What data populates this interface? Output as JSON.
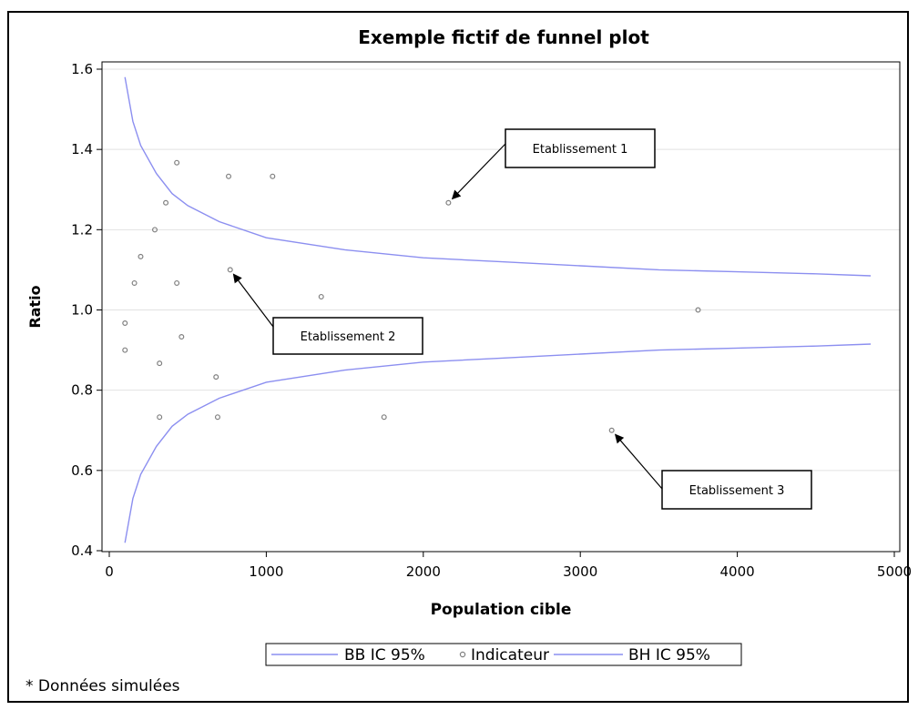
{
  "chart_data": {
    "type": "scatter",
    "title": "Exemple fictif de funnel plot",
    "xlabel": "Population cible",
    "ylabel": "Ratio",
    "xlim": [
      0,
      5000
    ],
    "ylim": [
      0.4,
      1.6
    ],
    "xticks": [
      "0",
      "1000",
      "2000",
      "3000",
      "4000",
      "5000"
    ],
    "yticks": [
      "0.4",
      "0.6",
      "0.8",
      "1.0",
      "1.2",
      "1.4",
      "1.6"
    ],
    "grid": "horizontal",
    "colors": {
      "bounds": "#8c8ff0",
      "points": "#808080"
    },
    "series": [
      {
        "name": "BB IC 95%",
        "kind": "line",
        "x": [
          100,
          150,
          200,
          300,
          400,
          500,
          700,
          1000,
          1500,
          2000,
          2500,
          3000,
          3500,
          4000,
          4500,
          4850
        ],
        "y": [
          0.42,
          0.53,
          0.59,
          0.66,
          0.71,
          0.74,
          0.78,
          0.82,
          0.85,
          0.87,
          0.88,
          0.89,
          0.9,
          0.905,
          0.91,
          0.915
        ]
      },
      {
        "name": "Indicateur",
        "kind": "scatter",
        "x": [
          100,
          100,
          160,
          200,
          290,
          320,
          320,
          360,
          430,
          430,
          460,
          680,
          690,
          760,
          770,
          1040,
          1350,
          1750,
          2160,
          3200,
          3750
        ],
        "y": [
          0.967,
          0.9,
          1.067,
          1.133,
          1.2,
          0.867,
          0.733,
          1.267,
          1.367,
          1.067,
          0.933,
          0.833,
          0.733,
          1.333,
          1.1,
          1.333,
          1.033,
          0.733,
          1.267,
          0.7,
          1.0
        ]
      },
      {
        "name": "BH IC 95%",
        "kind": "line",
        "x": [
          100,
          150,
          200,
          300,
          400,
          500,
          700,
          1000,
          1500,
          2000,
          2500,
          3000,
          3500,
          4000,
          4500,
          4850
        ],
        "y": [
          1.58,
          1.47,
          1.41,
          1.34,
          1.29,
          1.26,
          1.22,
          1.18,
          1.15,
          1.13,
          1.12,
          1.11,
          1.1,
          1.095,
          1.09,
          1.085
        ]
      }
    ],
    "annotations": [
      {
        "label": "Etablissement 1",
        "x": 2160,
        "y": 1.267
      },
      {
        "label": "Etablissement 2",
        "x": 770,
        "y": 1.1
      },
      {
        "label": "Etablissement 3",
        "x": 3200,
        "y": 0.7
      }
    ],
    "legend": {
      "placement": "bottom",
      "items": [
        "BB IC 95%",
        "Indicateur",
        "BH IC 95%"
      ]
    },
    "footnote": "* Données simulées"
  }
}
